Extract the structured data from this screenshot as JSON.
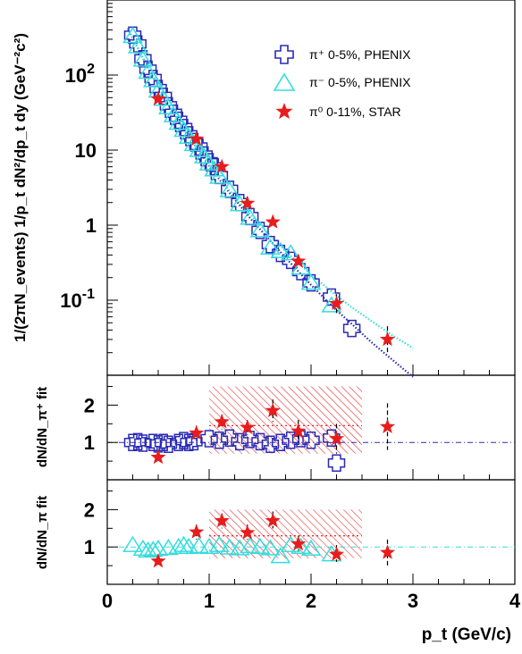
{
  "chart_data": [
    {
      "type": "scatter",
      "panel": "spectrum",
      "ylabel": "1/(2πN_events) 1/p_t dN²/dp_t dy (GeV⁻²c²)",
      "y_scale": "log",
      "xlim": [
        0,
        4
      ],
      "ylim": [
        0.01,
        1000
      ],
      "y_tick_labels": [
        "10^-1",
        "1",
        "10",
        "10^2"
      ],
      "legend_position": "top-right",
      "series": [
        {
          "name": "π⁺ 0-5%, PHENIX",
          "marker": "open-cross",
          "color": "#2a2ab5",
          "x": [
            0.25,
            0.3,
            0.35,
            0.4,
            0.45,
            0.5,
            0.55,
            0.6,
            0.65,
            0.7,
            0.75,
            0.8,
            0.85,
            0.9,
            0.95,
            1.0,
            1.05,
            1.1,
            1.2,
            1.3,
            1.4,
            1.5,
            1.6,
            1.7,
            1.8,
            1.9,
            2.0,
            2.2,
            2.4
          ],
          "y": [
            340,
            260,
            165,
            120,
            90,
            66,
            52,
            39,
            31,
            25,
            20,
            16,
            13,
            11,
            8.6,
            7.0,
            6.0,
            4.6,
            3.0,
            2.0,
            1.3,
            0.85,
            0.55,
            0.42,
            0.34,
            0.24,
            0.17,
            0.11,
            0.042
          ]
        },
        {
          "name": "π⁻ 0-5%, PHENIX",
          "marker": "open-triangle",
          "color": "#33dddd",
          "x": [
            0.25,
            0.3,
            0.35,
            0.4,
            0.45,
            0.5,
            0.55,
            0.6,
            0.65,
            0.7,
            0.75,
            0.8,
            0.85,
            0.9,
            0.95,
            1.0,
            1.05,
            1.1,
            1.2,
            1.3,
            1.4,
            1.5,
            1.6,
            1.7,
            1.8,
            1.9,
            2.0,
            2.2
          ],
          "y": [
            330,
            240,
            160,
            110,
            85,
            62,
            48,
            37,
            29,
            23,
            18.5,
            15,
            12,
            10,
            8.2,
            6.6,
            5.5,
            4.4,
            2.9,
            1.9,
            1.25,
            0.85,
            0.5,
            0.45,
            0.42,
            0.27,
            0.17,
            0.085
          ]
        },
        {
          "name": "π⁰ 0-11%, STAR",
          "marker": "star",
          "color": "#e81c1c",
          "x": [
            0.5,
            0.875,
            1.125,
            1.375,
            1.625,
            1.875,
            2.25,
            2.75
          ],
          "y": [
            48,
            14,
            6.0,
            1.95,
            1.1,
            0.33,
            0.09,
            0.03
          ],
          "err_low": [
            null,
            null,
            null,
            null,
            null,
            null,
            0.065,
            0.02
          ],
          "err_high": [
            null,
            null,
            null,
            null,
            null,
            null,
            0.12,
            0.045
          ]
        },
        {
          "name": "fit π⁺",
          "style": "dotted-line",
          "color": "#2a2ab5",
          "x": [
            0.2,
            0.4,
            0.6,
            0.8,
            1.0,
            1.2,
            1.4,
            1.6,
            1.8,
            2.0,
            2.2,
            2.4,
            2.6,
            2.8,
            3.0
          ],
          "y": [
            420,
            125,
            40,
            15,
            6.2,
            2.7,
            1.25,
            0.62,
            0.31,
            0.16,
            0.085,
            0.048,
            0.027,
            0.016,
            0.0095
          ]
        },
        {
          "name": "fit π⁻",
          "style": "dotted-line",
          "color": "#33dddd",
          "x": [
            0.2,
            0.4,
            0.6,
            0.8,
            1.0,
            1.2,
            1.4,
            1.6,
            1.8,
            2.0,
            2.2,
            2.4,
            2.6,
            2.8,
            3.0
          ],
          "y": [
            420,
            125,
            40,
            15,
            6.4,
            2.9,
            1.4,
            0.72,
            0.39,
            0.22,
            0.13,
            0.08,
            0.052,
            0.034,
            0.023
          ]
        }
      ]
    },
    {
      "type": "scatter",
      "panel": "ratio-pi-plus",
      "ylabel": "dN/dN_π⁺ fit",
      "xlim": [
        0,
        4
      ],
      "ylim": [
        0,
        2.8
      ],
      "y_tick_labels": [
        "1",
        "2"
      ],
      "reference_line": 1,
      "band": {
        "x": [
          1,
          2.5
        ],
        "y": [
          0.7,
          2.5
        ]
      },
      "dotted_level": {
        "x": [
          1,
          2.5
        ],
        "y": 1.45
      },
      "series": [
        {
          "name": "π⁺ 0-5%, PHENIX",
          "marker": "open-cross",
          "color": "#2a2ab5",
          "x": [
            0.25,
            0.3,
            0.35,
            0.45,
            0.5,
            0.55,
            0.6,
            0.7,
            0.75,
            0.8,
            0.85,
            1.0,
            1.1,
            1.2,
            1.3,
            1.4,
            1.5,
            1.6,
            1.7,
            1.8,
            1.9,
            2.0,
            2.2,
            2.25
          ],
          "y": [
            1.0,
            1.02,
            0.98,
            1.0,
            0.96,
            1.0,
            0.95,
            1.0,
            1.05,
            1.0,
            1.02,
            1.1,
            1.06,
            1.12,
            1.02,
            1.08,
            1.02,
            0.95,
            1.0,
            1.06,
            1.1,
            1.06,
            1.12,
            0.45
          ]
        },
        {
          "name": "π⁰ 0-11%, STAR",
          "marker": "star",
          "color": "#e81c1c",
          "x": [
            0.5,
            0.875,
            1.125,
            1.375,
            1.625,
            1.875,
            2.25,
            2.75
          ],
          "y": [
            0.6,
            1.25,
            1.55,
            1.4,
            1.85,
            1.3,
            1.1,
            1.42
          ],
          "err_low": [
            null,
            1.05,
            1.35,
            1.2,
            1.55,
            1.0,
            0.7,
            0.8
          ],
          "err_high": [
            null,
            1.45,
            1.75,
            1.6,
            2.15,
            1.6,
            1.5,
            2.05
          ]
        }
      ]
    },
    {
      "type": "scatter",
      "panel": "ratio-pi-minus",
      "ylabel": "dN/dN_π fit",
      "xlabel": "p_t (GeV/c)",
      "xlim": [
        0,
        4
      ],
      "ylim": [
        0,
        2.8
      ],
      "y_tick_labels": [
        "1",
        "2"
      ],
      "x_tick_labels": [
        "0",
        "1",
        "2",
        "3",
        "4"
      ],
      "reference_line": 1,
      "band": {
        "x": [
          1,
          2.5
        ],
        "y": [
          0.7,
          2.0
        ]
      },
      "dotted_level": {
        "x": [
          1,
          2.5
        ],
        "y": 1.3
      },
      "series": [
        {
          "name": "π⁻ 0-5%, PHENIX",
          "marker": "open-triangle",
          "color": "#33dddd",
          "x": [
            0.25,
            0.35,
            0.4,
            0.45,
            0.5,
            0.6,
            0.7,
            0.75,
            0.8,
            0.9,
            1.0,
            1.1,
            1.2,
            1.3,
            1.4,
            1.5,
            1.6,
            1.7,
            1.8,
            1.9,
            2.0,
            2.2
          ],
          "y": [
            1.05,
            0.95,
            0.9,
            0.92,
            0.95,
            0.97,
            1.0,
            1.05,
            1.0,
            1.02,
            1.0,
            1.05,
            0.98,
            0.96,
            1.02,
            1.0,
            0.96,
            0.75,
            1.05,
            1.0,
            0.95,
            0.8
          ]
        },
        {
          "name": "π⁰ 0-11%, STAR",
          "marker": "star",
          "color": "#e81c1c",
          "x": [
            0.5,
            0.875,
            1.125,
            1.375,
            1.625,
            1.875,
            2.25,
            2.75
          ],
          "y": [
            0.62,
            1.4,
            1.7,
            1.38,
            1.7,
            1.08,
            0.8,
            0.85
          ],
          "err_low": [
            null,
            1.2,
            1.5,
            1.2,
            1.5,
            0.9,
            0.6,
            0.5
          ],
          "err_high": [
            null,
            1.6,
            1.9,
            1.6,
            1.95,
            1.3,
            1.05,
            1.2
          ]
        }
      ]
    }
  ]
}
